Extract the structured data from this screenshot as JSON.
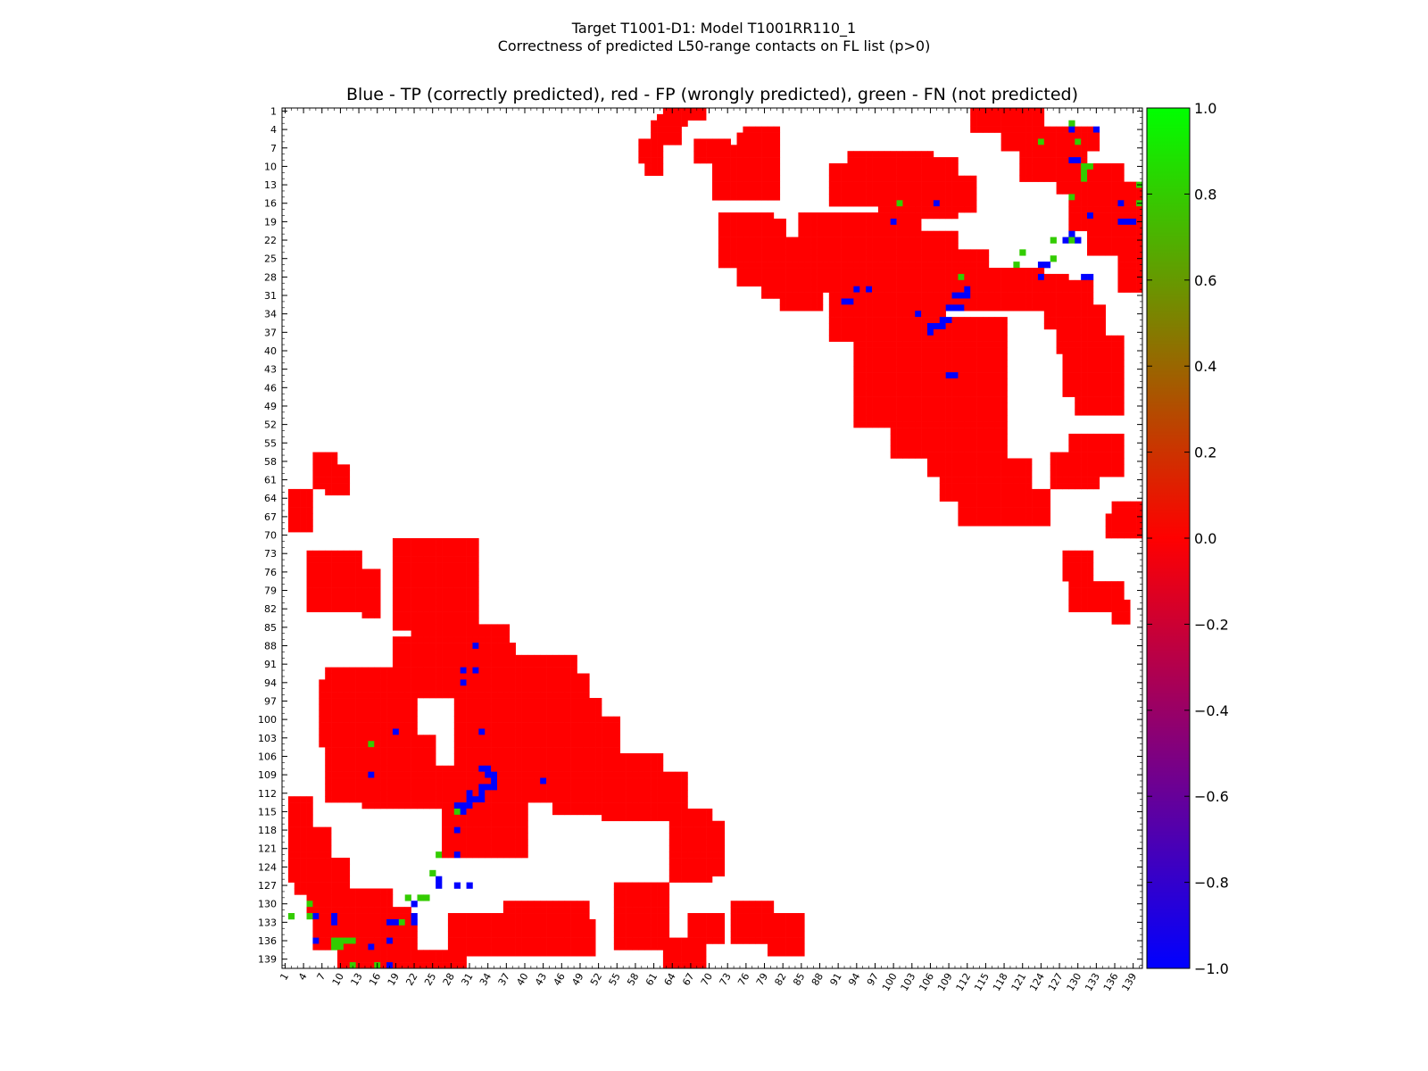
{
  "figure": {
    "suptitle_line1": "Target T1001-D1: Model T1001RR110_1",
    "suptitle_line2": "Correctness of predicted L50-range contacts on FL list (p>0)"
  },
  "chart_data": {
    "type": "heatmap",
    "title": "Blue - TP (correctly predicted), red - FP (wrongly predicted), green - FN (not predicted)",
    "xlabel": "",
    "ylabel": "",
    "n_residues": 140,
    "x_ticks": [
      1,
      4,
      7,
      10,
      13,
      16,
      19,
      22,
      25,
      28,
      31,
      34,
      37,
      40,
      43,
      46,
      49,
      52,
      55,
      58,
      61,
      64,
      67,
      70,
      73,
      76,
      79,
      82,
      85,
      88,
      91,
      94,
      97,
      100,
      103,
      106,
      109,
      112,
      115,
      118,
      121,
      124,
      127,
      130,
      133,
      136,
      139
    ],
    "y_ticks": [
      1,
      4,
      7,
      10,
      13,
      16,
      19,
      22,
      25,
      28,
      31,
      34,
      37,
      40,
      43,
      46,
      49,
      52,
      55,
      58,
      61,
      64,
      67,
      70,
      73,
      76,
      79,
      82,
      85,
      88,
      91,
      94,
      97,
      100,
      103,
      106,
      109,
      112,
      115,
      118,
      121,
      124,
      127,
      130,
      133,
      136,
      139
    ],
    "y_inverted": true,
    "legend": {
      "TP": -1.0,
      "FP": 0.0,
      "FN": 1.0
    },
    "colorbar": {
      "range": [
        -1.0,
        1.0
      ],
      "ticks": [
        "1.0",
        "0.8",
        "0.6",
        "0.4",
        "0.2",
        "0.0",
        "−0.2",
        "−0.4",
        "−0.6",
        "−0.8",
        "−1.0"
      ],
      "tick_values": [
        1.0,
        0.8,
        0.6,
        0.4,
        0.2,
        0.0,
        -0.2,
        -0.4,
        -0.6,
        -0.8,
        -1.0
      ],
      "colors": [
        "#0000ff",
        "#ff0000",
        "#00ff00"
      ]
    },
    "colors": {
      "TP": "#0000ff",
      "FP": "#ff0000",
      "FN": "#33cc00"
    },
    "upper_fp_regions": [
      [
        1,
        2,
        63,
        69
      ],
      [
        2,
        3,
        62,
        66
      ],
      [
        3,
        6,
        61,
        65
      ],
      [
        6,
        9,
        59,
        62
      ],
      [
        8,
        11,
        60,
        62
      ],
      [
        5,
        9,
        75,
        79
      ],
      [
        4,
        8,
        76,
        81
      ],
      [
        7,
        15,
        71,
        81
      ],
      [
        6,
        9,
        68,
        73
      ],
      [
        1,
        4,
        113,
        124
      ],
      [
        4,
        7,
        118,
        133
      ],
      [
        6,
        12,
        121,
        131
      ],
      [
        10,
        14,
        127,
        137
      ],
      [
        13,
        20,
        129,
        140
      ],
      [
        16,
        24,
        132,
        140
      ],
      [
        22,
        30,
        137,
        140
      ],
      [
        8,
        13,
        93,
        106
      ],
      [
        10,
        16,
        90,
        97
      ],
      [
        9,
        18,
        100,
        110
      ],
      [
        11,
        22,
        98,
        104
      ],
      [
        12,
        17,
        105,
        113
      ],
      [
        18,
        26,
        72,
        80
      ],
      [
        19,
        29,
        75,
        82
      ],
      [
        22,
        31,
        79,
        85
      ],
      [
        26,
        33,
        82,
        88
      ],
      [
        18,
        30,
        85,
        100
      ],
      [
        21,
        25,
        86,
        110
      ],
      [
        23,
        30,
        96,
        110
      ],
      [
        24,
        33,
        100,
        115
      ],
      [
        27,
        33,
        105,
        124
      ],
      [
        28,
        31,
        112,
        128
      ],
      [
        30,
        38,
        90,
        108
      ],
      [
        32,
        52,
        94,
        108
      ],
      [
        35,
        55,
        107,
        118
      ],
      [
        40,
        48,
        97,
        107
      ],
      [
        42,
        49,
        100,
        115
      ],
      [
        48,
        57,
        100,
        108
      ],
      [
        52,
        60,
        106,
        118
      ],
      [
        55,
        64,
        108,
        118
      ],
      [
        58,
        68,
        111,
        122
      ],
      [
        63,
        68,
        112,
        125
      ],
      [
        29,
        36,
        125,
        132
      ],
      [
        33,
        40,
        127,
        134
      ],
      [
        38,
        47,
        128,
        137
      ],
      [
        40,
        46,
        130,
        136
      ],
      [
        45,
        50,
        130,
        137
      ],
      [
        54,
        60,
        129,
        137
      ],
      [
        57,
        62,
        126,
        133
      ],
      [
        65,
        68,
        136,
        140
      ],
      [
        67,
        70,
        135,
        140
      ],
      [
        73,
        77,
        128,
        132
      ],
      [
        78,
        82,
        129,
        137
      ],
      [
        81,
        84,
        136,
        138
      ]
    ],
    "upper_tp": [
      [
        4,
        129
      ],
      [
        4,
        133
      ],
      [
        9,
        129
      ],
      [
        9,
        130
      ],
      [
        16,
        107
      ],
      [
        16,
        137
      ],
      [
        18,
        132
      ],
      [
        19,
        100
      ],
      [
        19,
        137
      ],
      [
        19,
        138
      ],
      [
        19,
        139
      ],
      [
        21,
        129
      ],
      [
        22,
        128
      ],
      [
        22,
        130
      ],
      [
        26,
        124
      ],
      [
        26,
        125
      ],
      [
        28,
        124
      ],
      [
        28,
        131
      ],
      [
        28,
        132
      ],
      [
        30,
        94
      ],
      [
        30,
        96
      ],
      [
        30,
        112
      ],
      [
        31,
        110
      ],
      [
        31,
        111
      ],
      [
        31,
        112
      ],
      [
        32,
        92
      ],
      [
        32,
        93
      ],
      [
        33,
        109
      ],
      [
        33,
        110
      ],
      [
        33,
        111
      ],
      [
        34,
        104
      ],
      [
        35,
        108
      ],
      [
        35,
        109
      ],
      [
        36,
        106
      ],
      [
        36,
        107
      ],
      [
        36,
        108
      ],
      [
        37,
        106
      ],
      [
        44,
        109
      ],
      [
        44,
        110
      ]
    ],
    "upper_fn": [
      [
        3,
        129
      ],
      [
        6,
        124
      ],
      [
        6,
        130
      ],
      [
        10,
        131
      ],
      [
        10,
        132
      ],
      [
        11,
        131
      ],
      [
        12,
        131
      ],
      [
        13,
        140
      ],
      [
        15,
        129
      ],
      [
        16,
        101
      ],
      [
        16,
        140
      ],
      [
        22,
        126
      ],
      [
        22,
        129
      ],
      [
        24,
        121
      ],
      [
        25,
        126
      ],
      [
        26,
        120
      ],
      [
        28,
        111
      ]
    ],
    "lower_fp_regions": [
      [
        63,
        69,
        2,
        5
      ],
      [
        59,
        63,
        8,
        11
      ],
      [
        57,
        62,
        6,
        9
      ],
      [
        64,
        66,
        3,
        5
      ],
      [
        73,
        82,
        5,
        13
      ],
      [
        74,
        82,
        8,
        12
      ],
      [
        76,
        83,
        14,
        16
      ],
      [
        71,
        85,
        19,
        32
      ],
      [
        74,
        87,
        22,
        28
      ],
      [
        79,
        86,
        25,
        31
      ],
      [
        85,
        92,
        24,
        37
      ],
      [
        87,
        94,
        19,
        30
      ],
      [
        88,
        96,
        22,
        38
      ],
      [
        90,
        110,
        29,
        48
      ],
      [
        93,
        108,
        33,
        50
      ],
      [
        97,
        113,
        37,
        52
      ],
      [
        100,
        112,
        40,
        55
      ],
      [
        106,
        115,
        45,
        62
      ],
      [
        109,
        116,
        53,
        66
      ],
      [
        92,
        113,
        8,
        22
      ],
      [
        94,
        104,
        7,
        16
      ],
      [
        97,
        107,
        10,
        20
      ],
      [
        103,
        114,
        14,
        25
      ],
      [
        108,
        114,
        20,
        30
      ],
      [
        110,
        122,
        27,
        40
      ],
      [
        113,
        126,
        2,
        5
      ],
      [
        118,
        128,
        3,
        8
      ],
      [
        123,
        131,
        5,
        11
      ],
      [
        128,
        137,
        6,
        18
      ],
      [
        131,
        140,
        10,
        21
      ],
      [
        134,
        140,
        17,
        22
      ],
      [
        138,
        140,
        19,
        30
      ],
      [
        115,
        126,
        64,
        70
      ],
      [
        117,
        125,
        65,
        72
      ],
      [
        127,
        137,
        55,
        63
      ],
      [
        127,
        137,
        57,
        62
      ],
      [
        130,
        137,
        37,
        50
      ],
      [
        132,
        138,
        28,
        44
      ],
      [
        133,
        138,
        45,
        51
      ],
      [
        132,
        136,
        67,
        72
      ],
      [
        130,
        136,
        74,
        80
      ],
      [
        132,
        138,
        80,
        85
      ],
      [
        136,
        140,
        63,
        69
      ]
    ],
    "lower_tp": [
      [
        88,
        32
      ],
      [
        92,
        30
      ],
      [
        92,
        32
      ],
      [
        94,
        30
      ],
      [
        102,
        19
      ],
      [
        102,
        33
      ],
      [
        108,
        33
      ],
      [
        108,
        34
      ],
      [
        109,
        15
      ],
      [
        109,
        34
      ],
      [
        109,
        35
      ],
      [
        110,
        43
      ],
      [
        110,
        35
      ],
      [
        111,
        33
      ],
      [
        111,
        34
      ],
      [
        111,
        35
      ],
      [
        112,
        31
      ],
      [
        112,
        33
      ],
      [
        113,
        31
      ],
      [
        113,
        32
      ],
      [
        113,
        33
      ],
      [
        114,
        29
      ],
      [
        114,
        30
      ],
      [
        114,
        31
      ],
      [
        115,
        30
      ],
      [
        118,
        29
      ],
      [
        122,
        29
      ],
      [
        126,
        26
      ],
      [
        127,
        26
      ],
      [
        127,
        29
      ],
      [
        127,
        31
      ],
      [
        130,
        22
      ],
      [
        132,
        6
      ],
      [
        132,
        9
      ],
      [
        132,
        22
      ],
      [
        133,
        9
      ],
      [
        133,
        18
      ],
      [
        133,
        19
      ],
      [
        133,
        22
      ],
      [
        136,
        6
      ],
      [
        136,
        18
      ],
      [
        137,
        15
      ],
      [
        140,
        18
      ]
    ],
    "lower_fn": [
      [
        104,
        15
      ],
      [
        115,
        29
      ],
      [
        122,
        26
      ],
      [
        125,
        25
      ],
      [
        129,
        21
      ],
      [
        129,
        23
      ],
      [
        129,
        24
      ],
      [
        130,
        5
      ],
      [
        132,
        2
      ],
      [
        132,
        5
      ],
      [
        133,
        20
      ],
      [
        136,
        9
      ],
      [
        136,
        10
      ],
      [
        136,
        11
      ],
      [
        136,
        12
      ],
      [
        137,
        9
      ],
      [
        137,
        10
      ],
      [
        140,
        12
      ],
      [
        140,
        16
      ]
    ]
  }
}
